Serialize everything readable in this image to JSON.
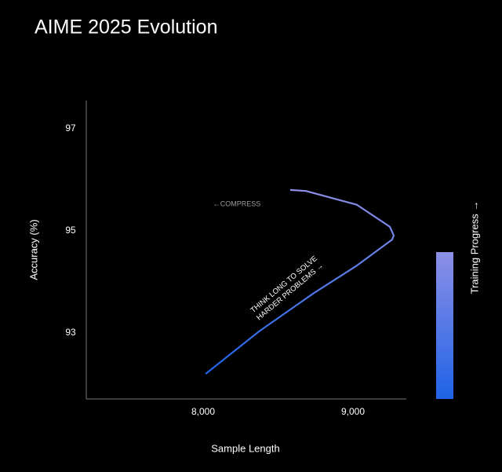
{
  "chart_data": {
    "type": "line",
    "title": "AIME 2025 Evolution",
    "x_label": "Sample Length",
    "y_label": "Accuracy (%)",
    "colorbar_label": "Training Progress →",
    "colors": [
      "#1f63e6",
      "#8c8fe6"
    ],
    "annotations": [
      "←COMPRESS",
      "THINK LONG TO SOLVE",
      "HARDER PROBLEMS →"
    ],
    "xlim": [
      7220,
      9356
    ],
    "ylim": [
      91.71,
      97.55
    ],
    "xticks": [
      {
        "value": 8000,
        "label": "8,000"
      },
      {
        "value": 9000,
        "label": "9,000"
      }
    ],
    "yticks": [
      93,
      95,
      97
    ],
    "series": [
      {
        "name": "Training trajectory",
        "x": [
          8016,
          8372,
          8738,
          9026,
          9262,
          9272,
          9246,
          9026,
          8686,
          8581
        ],
        "values": [
          92.2,
          93.03,
          93.78,
          94.32,
          94.83,
          94.91,
          95.08,
          95.51,
          95.78,
          95.8
        ]
      }
    ]
  }
}
